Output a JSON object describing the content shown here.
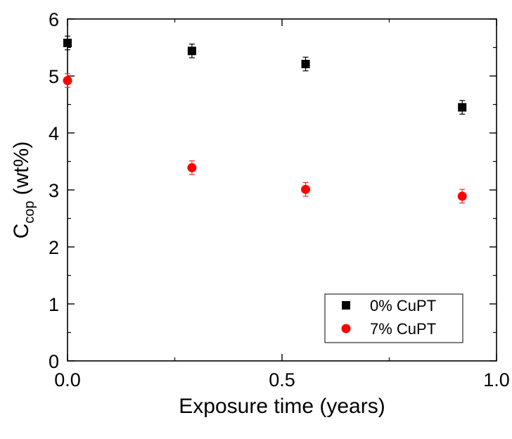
{
  "chart_data": {
    "type": "scatter",
    "xlabel": "Exposure time (years)",
    "ylabel": {
      "main": "C",
      "sub": "cop",
      "rest": "(wt%)"
    },
    "xlim": [
      0.0,
      1.0
    ],
    "ylim": [
      0,
      6
    ],
    "x_ticks": [
      0.0,
      0.5,
      1.0
    ],
    "x_tick_labels": [
      "0.0",
      "0.5",
      "1.0"
    ],
    "y_ticks": [
      0,
      1,
      2,
      3,
      4,
      5,
      6
    ],
    "y_tick_labels": [
      "0",
      "1",
      "2",
      "3",
      "4",
      "5",
      "6"
    ],
    "grid": false,
    "legend_position": "bottom-right",
    "series": [
      {
        "name": "0% CuPT",
        "marker": "square",
        "color": "#000000",
        "points": [
          {
            "x": 0.0,
            "y": 5.58,
            "err": 0.12
          },
          {
            "x": 0.29,
            "y": 5.44,
            "err": 0.12
          },
          {
            "x": 0.555,
            "y": 5.21,
            "err": 0.12
          },
          {
            "x": 0.92,
            "y": 4.45,
            "err": 0.12
          }
        ]
      },
      {
        "name": "7% CuPT",
        "marker": "circle",
        "color": "#ff0000",
        "points": [
          {
            "x": 0.0,
            "y": 4.92,
            "err": 0.12
          },
          {
            "x": 0.29,
            "y": 3.39,
            "err": 0.12
          },
          {
            "x": 0.555,
            "y": 3.01,
            "err": 0.12
          },
          {
            "x": 0.92,
            "y": 2.89,
            "err": 0.12
          }
        ]
      }
    ]
  }
}
